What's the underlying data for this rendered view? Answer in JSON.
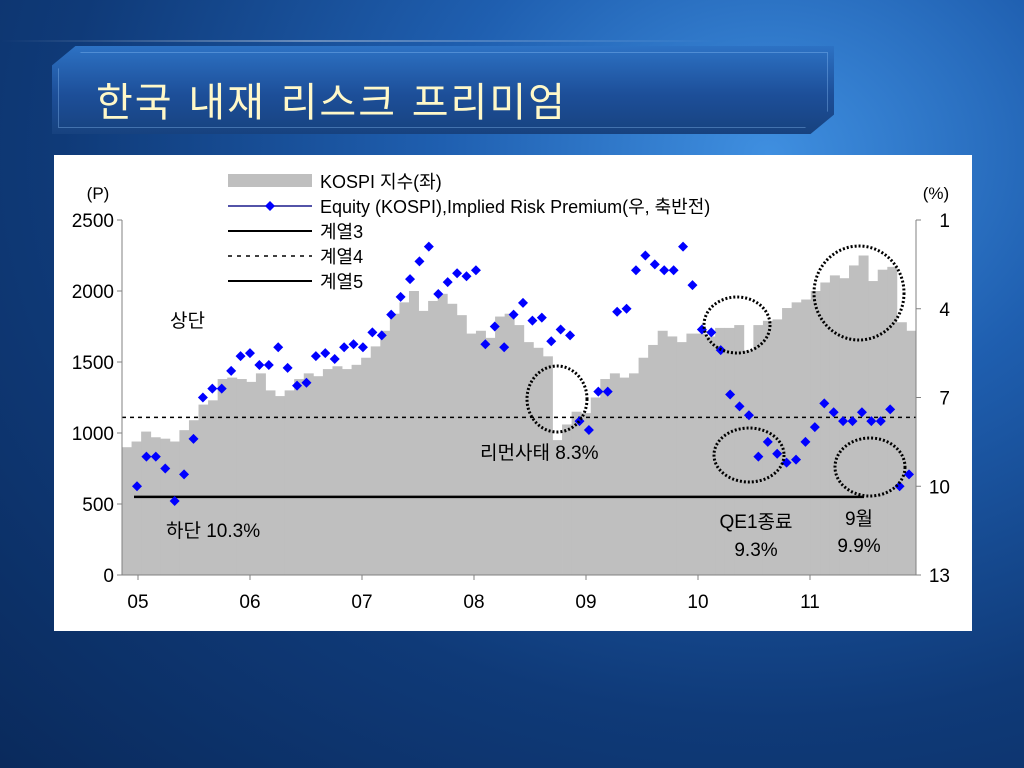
{
  "slide": {
    "title": "한국 내재 리스크 프리미엄"
  },
  "chart_data": {
    "type": "bar+line",
    "left_axis": {
      "unit_label": "(P)",
      "ticks": [
        0,
        500,
        1000,
        1500,
        2000,
        2500
      ],
      "range": [
        0,
        2500
      ]
    },
    "right_axis": {
      "unit_label": "(%)",
      "ticks": [
        1,
        4,
        7,
        10,
        13
      ],
      "range": [
        1,
        13
      ],
      "reversed": true
    },
    "x_ticks": [
      "05",
      "06",
      "07",
      "08",
      "09",
      "10",
      "11"
    ],
    "legend": [
      {
        "label": "KOSPI 지수(좌)",
        "style": "bar",
        "color": "#bfbfbf"
      },
      {
        "label": "Equity (KOSPI),Implied Risk Premium(우, 축반전)",
        "style": "line-marker",
        "color": "#0000ff"
      },
      {
        "label": "계열3",
        "style": "line",
        "color": "#000000"
      },
      {
        "label": "계열4",
        "style": "dashed",
        "color": "#000000"
      },
      {
        "label": "계열5",
        "style": "line",
        "color": "#000000"
      }
    ],
    "series": [
      {
        "name": "KOSPI 지수(좌)",
        "type": "bar",
        "values": [
          900,
          940,
          1010,
          970,
          960,
          940,
          1020,
          1090,
          1200,
          1230,
          1380,
          1390,
          1380,
          1360,
          1420,
          1300,
          1260,
          1300,
          1380,
          1420,
          1400,
          1450,
          1470,
          1450,
          1480,
          1530,
          1610,
          1720,
          1840,
          1920,
          2000,
          1860,
          1930,
          1980,
          1910,
          1830,
          1700,
          1720,
          1670,
          1820,
          1840,
          1760,
          1640,
          1600,
          1540,
          950,
          1060,
          1150,
          1140,
          1250,
          1380,
          1420,
          1390,
          1420,
          1530,
          1620,
          1720,
          1680,
          1640,
          1700,
          1700,
          1680,
          1740,
          1740,
          1760,
          1580,
          1760,
          1790,
          1800,
          1880,
          1920,
          1940,
          2000,
          2060,
          2110,
          2090,
          2180,
          2250,
          2070,
          2150,
          2170,
          1780,
          1720
        ]
      },
      {
        "name": "Equity (KOSPI),Implied Risk Premium(우, 축반전)",
        "type": "line-marker",
        "values": [
          10.0,
          9.0,
          9.0,
          9.4,
          10.5,
          9.6,
          8.4,
          7.0,
          6.7,
          6.7,
          6.1,
          5.6,
          5.5,
          5.9,
          5.9,
          5.3,
          6.0,
          6.6,
          6.5,
          5.6,
          5.5,
          5.7,
          5.3,
          5.2,
          5.3,
          4.8,
          4.9,
          4.2,
          3.6,
          3.0,
          2.4,
          1.9,
          3.5,
          3.1,
          2.8,
          2.9,
          2.7,
          5.2,
          4.6,
          5.3,
          4.2,
          3.8,
          4.4,
          4.3,
          5.1,
          4.7,
          4.9,
          7.8,
          8.1,
          6.8,
          6.8,
          4.1,
          4.0,
          2.7,
          2.2,
          2.5,
          2.7,
          2.7,
          1.9,
          3.2,
          4.7,
          4.8,
          5.4,
          6.9,
          7.3,
          7.6,
          9.0,
          8.5,
          8.9,
          9.2,
          9.1,
          8.5,
          8.0,
          7.2,
          7.5,
          7.8,
          7.8,
          7.5,
          7.8,
          7.8,
          7.4,
          10.0,
          9.6
        ]
      },
      {
        "name": "계열3",
        "type": "line",
        "value_left": 550
      },
      {
        "name": "계열4",
        "type": "dashed-line",
        "value_left": 1110
      },
      {
        "name": "계열5",
        "type": "line",
        "value_left": 550
      }
    ],
    "annotations": {
      "upper": "상단",
      "lower": "하단 10.3%",
      "lehman": "리먼사태 8.3%",
      "qe1_line1": "QE1종료",
      "qe1_line2": "9.3%",
      "sep_line1": "9월",
      "sep_line2": "9.9%"
    }
  }
}
